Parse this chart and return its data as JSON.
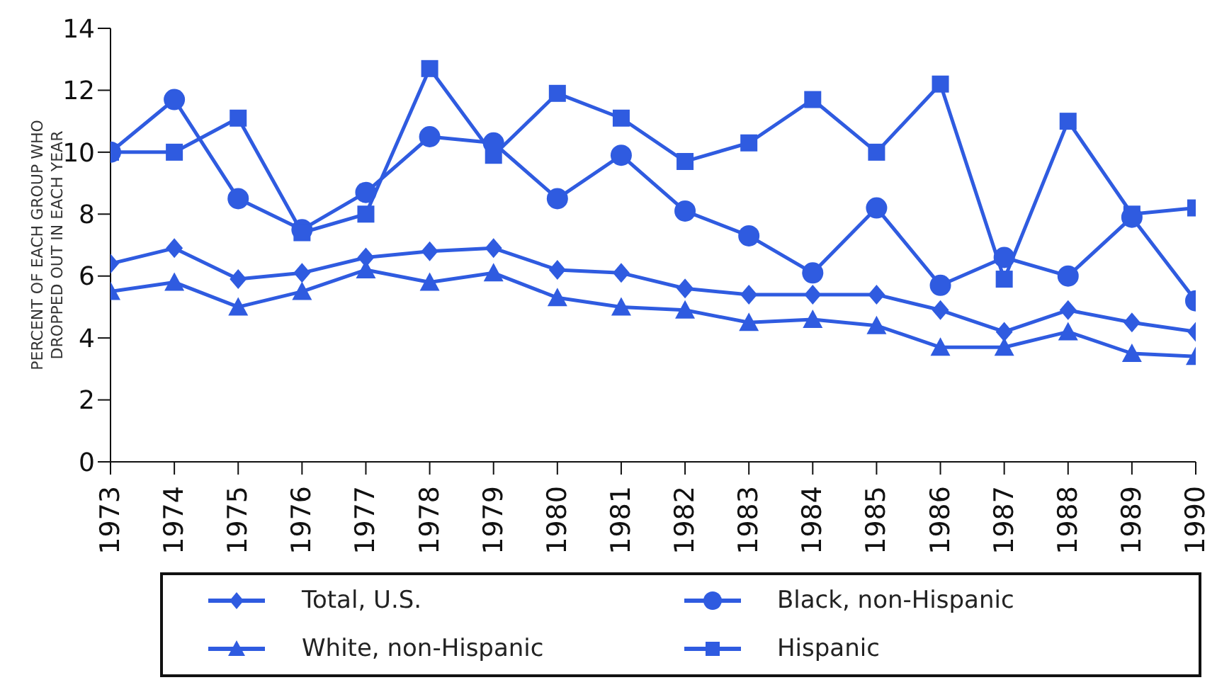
{
  "chart_data": {
    "type": "line",
    "ylabel": "PERCENT OF EACH GROUP WHO DROPPED OUT IN EACH YEAR",
    "categories": [
      "1973",
      "1974",
      "1975",
      "1976",
      "1977",
      "1978",
      "1979",
      "1980",
      "1981",
      "1982",
      "1983",
      "1984",
      "1985",
      "1986",
      "1987",
      "1988",
      "1989",
      "1990"
    ],
    "ylim": [
      0,
      14
    ],
    "yticks": [
      0,
      2,
      4,
      6,
      8,
      10,
      12,
      14
    ],
    "grid": false,
    "legend": "bottom",
    "line_style": "solid",
    "series": [
      {
        "name": "Total, U.S.",
        "color": "#2f5be0",
        "marker": "diamond",
        "values": [
          6.4,
          6.9,
          5.9,
          6.1,
          6.6,
          6.8,
          6.9,
          6.2,
          6.1,
          5.6,
          5.4,
          5.4,
          5.4,
          4.9,
          4.2,
          4.9,
          4.5,
          4.2
        ]
      },
      {
        "name": "Black, non-Hispanic",
        "color": "#2f5be0",
        "marker": "circle",
        "values": [
          10.0,
          11.7,
          8.5,
          7.5,
          8.7,
          10.5,
          10.3,
          8.5,
          9.9,
          8.1,
          7.3,
          6.1,
          8.2,
          5.7,
          6.6,
          6.0,
          7.9,
          5.2
        ]
      },
      {
        "name": "White, non-Hispanic",
        "color": "#2f5be0",
        "marker": "triangle",
        "values": [
          5.5,
          5.8,
          5.0,
          5.5,
          6.2,
          5.8,
          6.1,
          5.3,
          5.0,
          4.9,
          4.5,
          4.6,
          4.4,
          3.7,
          3.7,
          4.2,
          3.5,
          3.4
        ]
      },
      {
        "name": "Hispanic",
        "color": "#2f5be0",
        "marker": "square",
        "values": [
          10.0,
          10.0,
          11.1,
          7.4,
          8.0,
          12.7,
          9.9,
          11.9,
          11.1,
          9.7,
          10.3,
          11.7,
          10.0,
          12.2,
          5.9,
          11.0,
          8.0,
          8.2
        ]
      }
    ]
  }
}
